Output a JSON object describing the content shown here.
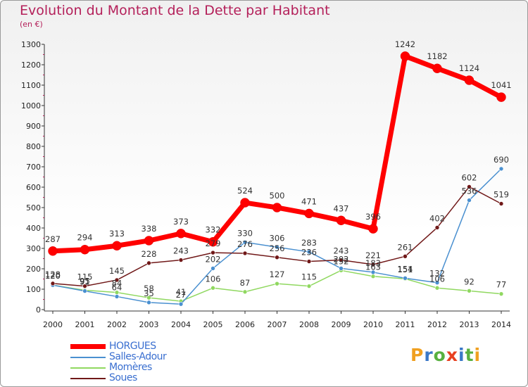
{
  "title": "Evolution du Montant de la Dette par Habitant",
  "subtitle": "(en €)",
  "logo": {
    "text": "Proxiti",
    "colors": [
      "#f0a020",
      "#3a78c8",
      "#58b040",
      "#e84020",
      "#3a78c8",
      "#58b040",
      "#f0a020"
    ]
  },
  "chart_data": {
    "type": "line",
    "x": [
      "2000",
      "2001",
      "2002",
      "2003",
      "2004",
      "2005",
      "2006",
      "2007",
      "2008",
      "2009",
      "2010",
      "2011",
      "2012",
      "2013",
      "2014"
    ],
    "ylim": [
      0,
      1300
    ],
    "yticks": [
      "0",
      "100",
      "200",
      "300",
      "400",
      "500",
      "600",
      "700",
      "800",
      "900",
      "1000",
      "1100",
      "1200",
      "1300"
    ],
    "grid": false,
    "legend_position": "bottom-left",
    "series": [
      {
        "name": "HORGUES",
        "color": "#ff0000",
        "values": [
          287,
          294,
          313,
          338,
          373,
          332,
          524,
          500,
          471,
          437,
          396,
          1242,
          1182,
          1124,
          1041
        ],
        "labels": [
          "287",
          "294",
          "313",
          "338",
          "373",
          "332",
          "524",
          "500",
          "471",
          "437",
          "396",
          "1242",
          "1182",
          "1124",
          "1041"
        ]
      },
      {
        "name": "Salles-Adour",
        "color": "#4a90d0",
        "values": [
          120,
          91,
          64,
          35,
          27,
          202,
          330,
          306,
          283,
          202,
          183,
          154,
          132,
          536,
          690
        ],
        "labels": [
          "120",
          "91",
          "64",
          "35",
          "27",
          "202",
          "330",
          "306",
          "283",
          "202",
          "183",
          "154",
          "132",
          "536",
          "690"
        ]
      },
      {
        "name": "Momères",
        "color": "#90d860",
        "values": [
          120,
          95,
          84,
          58,
          41,
          106,
          87,
          127,
          115,
          192,
          163,
          151,
          106,
          92,
          77
        ],
        "labels": [
          "120",
          "95",
          "84",
          "58",
          "41",
          "106",
          "87",
          "127",
          "115",
          "192",
          "163",
          "151",
          "106",
          "92",
          "77"
        ]
      },
      {
        "name": "Soues",
        "color": "#701818",
        "values": [
          128,
          115,
          145,
          228,
          243,
          279,
          276,
          256,
          236,
          243,
          221,
          261,
          402,
          602,
          519
        ],
        "labels": [
          "128",
          "115",
          "145",
          "228",
          "243",
          "279",
          "276",
          "256",
          "236",
          "243",
          "221",
          "261",
          "402",
          "602",
          "519"
        ]
      }
    ]
  }
}
